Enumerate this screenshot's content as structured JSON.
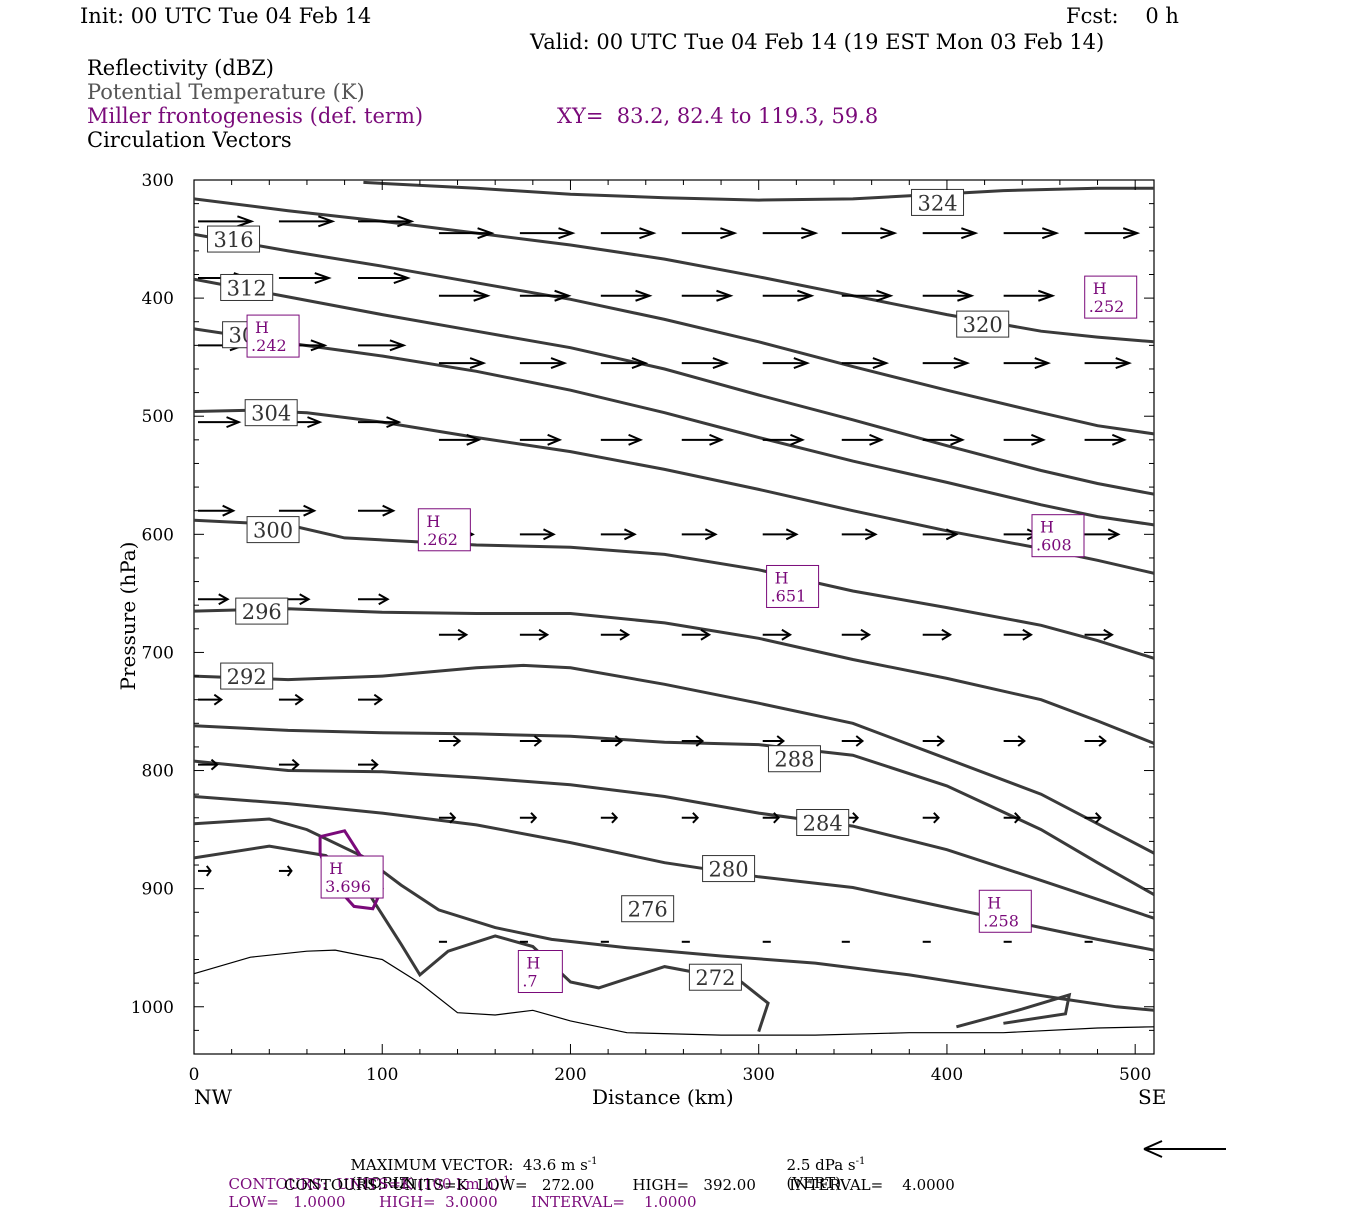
{
  "header": {
    "init": "Init: 00 UTC Tue 04 Feb 14",
    "fcst": "Fcst:    0 h",
    "valid": "Valid: 00 UTC Tue 04 Feb 14 (19 EST Mon 03 Feb 14)"
  },
  "legend": {
    "line1": "Reflectivity (dBZ)",
    "line2": "Potential Temperature (K)",
    "line3": "Miller frontogenesis (def. term)",
    "xy": "XY=  83.2, 82.4 to 119.3, 59.8",
    "line4": "Circulation Vectors"
  },
  "footer": {
    "max_vector": "MAXIMUM VECTOR:  43.6 m s",
    "max_vector_horiz": "(HORIZ)",
    "max_vector_vert": "2.5 dPa s",
    "max_vector_vert_unit": "(VERT)",
    "sup_minus1": "-1",
    "contours1_a": "CONTOURS:  UNITS=K (100 km h)",
    "contours1_b": "LOW=   1.0000       HIGH=  3.0000       INTERVAL=    1.0000",
    "contours2": "CONTOURS:  UNITS=K  LOW=   272.00        HIGH=   392.00       INTERVAL=    4.0000"
  },
  "colors": {
    "theta": "#3a3a3a",
    "front": "#7a0a7a",
    "vector": "#000000",
    "terrain": "#000000"
  },
  "chart_data": {
    "type": "line",
    "ylabel": "Pressure (hPa)",
    "xlabel": "Distance (km)",
    "x_left_label": "NW",
    "x_right_label": "SE",
    "xlim": [
      0,
      510
    ],
    "ylim": [
      300,
      1040
    ],
    "y_scale": "linear-inverted",
    "x_ticks": [
      0,
      100,
      200,
      300,
      400,
      500
    ],
    "y_ticks": [
      300,
      400,
      500,
      600,
      700,
      800,
      900,
      1000
    ],
    "theta_contours": [
      {
        "value": 324,
        "label": "324",
        "label_at": [
          395,
          319
        ],
        "points": [
          [
            90,
            302
          ],
          [
            150,
            307
          ],
          [
            200,
            312
          ],
          [
            250,
            315
          ],
          [
            300,
            317
          ],
          [
            350,
            316
          ],
          [
            395,
            312
          ],
          [
            430,
            309
          ],
          [
            480,
            307
          ],
          [
            510,
            307
          ]
        ]
      },
      {
        "value": 320,
        "label": "320",
        "label_at": [
          419,
          422
        ],
        "points": [
          [
            0,
            316
          ],
          [
            50,
            326
          ],
          [
            100,
            335
          ],
          [
            150,
            345
          ],
          [
            200,
            355
          ],
          [
            250,
            367
          ],
          [
            300,
            382
          ],
          [
            350,
            398
          ],
          [
            400,
            414
          ],
          [
            450,
            428
          ],
          [
            480,
            433
          ],
          [
            510,
            437
          ]
        ]
      },
      {
        "value": 316,
        "label": "316",
        "label_at": [
          21,
          350
        ],
        "points": [
          [
            0,
            346
          ],
          [
            50,
            360
          ],
          [
            100,
            373
          ],
          [
            150,
            387
          ],
          [
            200,
            401
          ],
          [
            250,
            418
          ],
          [
            300,
            437
          ],
          [
            350,
            458
          ],
          [
            400,
            478
          ],
          [
            450,
            497
          ],
          [
            480,
            508
          ],
          [
            510,
            515
          ]
        ]
      },
      {
        "value": 312,
        "label": "312",
        "label_at": [
          28,
          391
        ],
        "points": [
          [
            0,
            384
          ],
          [
            50,
            399
          ],
          [
            100,
            414
          ],
          [
            150,
            428
          ],
          [
            200,
            442
          ],
          [
            250,
            460
          ],
          [
            300,
            482
          ],
          [
            350,
            503
          ],
          [
            400,
            525
          ],
          [
            450,
            546
          ],
          [
            480,
            557
          ],
          [
            510,
            566
          ]
        ]
      },
      {
        "value": 308,
        "label": "308",
        "label_at": [
          29,
          431
        ],
        "points": [
          [
            0,
            426
          ],
          [
            50,
            438
          ],
          [
            100,
            449
          ],
          [
            150,
            462
          ],
          [
            200,
            478
          ],
          [
            250,
            497
          ],
          [
            300,
            518
          ],
          [
            350,
            538
          ],
          [
            400,
            556
          ],
          [
            450,
            575
          ],
          [
            480,
            585
          ],
          [
            510,
            592
          ]
        ]
      },
      {
        "value": 304,
        "label": "304",
        "label_at": [
          41,
          497
        ],
        "points": [
          [
            0,
            496
          ],
          [
            30,
            495
          ],
          [
            60,
            497
          ],
          [
            100,
            505
          ],
          [
            150,
            518
          ],
          [
            200,
            530
          ],
          [
            250,
            545
          ],
          [
            300,
            562
          ],
          [
            350,
            580
          ],
          [
            400,
            597
          ],
          [
            450,
            612
          ],
          [
            480,
            622
          ],
          [
            510,
            633
          ]
        ]
      },
      {
        "value": 300,
        "label": "300",
        "label_at": [
          42,
          596
        ],
        "points": [
          [
            0,
            588
          ],
          [
            50,
            592
          ],
          [
            80,
            603
          ],
          [
            150,
            609
          ],
          [
            200,
            611
          ],
          [
            250,
            617
          ],
          [
            300,
            630
          ],
          [
            350,
            648
          ],
          [
            400,
            662
          ],
          [
            450,
            677
          ],
          [
            480,
            690
          ],
          [
            510,
            705
          ]
        ]
      },
      {
        "value": 296,
        "label": "296",
        "label_at": [
          36,
          665
        ],
        "points": [
          [
            0,
            665
          ],
          [
            50,
            663
          ],
          [
            100,
            666
          ],
          [
            150,
            667
          ],
          [
            200,
            667
          ],
          [
            250,
            675
          ],
          [
            300,
            688
          ],
          [
            350,
            706
          ],
          [
            400,
            722
          ],
          [
            450,
            740
          ],
          [
            480,
            758
          ],
          [
            510,
            777
          ]
        ]
      },
      {
        "value": 292,
        "label": "292",
        "label_at": [
          28,
          720
        ],
        "points": [
          [
            0,
            720
          ],
          [
            50,
            723
          ],
          [
            100,
            720
          ],
          [
            150,
            713
          ],
          [
            175,
            711
          ],
          [
            200,
            713
          ],
          [
            250,
            727
          ],
          [
            300,
            743
          ],
          [
            350,
            760
          ],
          [
            400,
            790
          ],
          [
            450,
            820
          ],
          [
            480,
            845
          ],
          [
            510,
            870
          ]
        ]
      },
      {
        "value": 288,
        "label": "288",
        "label_at": [
          319,
          790
        ],
        "points": [
          [
            0,
            762
          ],
          [
            50,
            766
          ],
          [
            100,
            768
          ],
          [
            150,
            769
          ],
          [
            200,
            771
          ],
          [
            250,
            776
          ],
          [
            300,
            778
          ],
          [
            350,
            787
          ],
          [
            400,
            813
          ],
          [
            450,
            850
          ],
          [
            480,
            878
          ],
          [
            510,
            905
          ]
        ]
      },
      {
        "value": 284,
        "label": "284",
        "label_at": [
          334,
          844
        ],
        "points": [
          [
            0,
            792
          ],
          [
            50,
            800
          ],
          [
            100,
            801
          ],
          [
            150,
            806
          ],
          [
            200,
            812
          ],
          [
            250,
            822
          ],
          [
            300,
            836
          ],
          [
            350,
            847
          ],
          [
            400,
            867
          ],
          [
            450,
            893
          ],
          [
            480,
            909
          ],
          [
            510,
            925
          ]
        ]
      },
      {
        "value": 280,
        "label": "280",
        "label_at": [
          284,
          883
        ],
        "points": [
          [
            0,
            822
          ],
          [
            50,
            828
          ],
          [
            100,
            836
          ],
          [
            150,
            846
          ],
          [
            200,
            861
          ],
          [
            250,
            878
          ],
          [
            300,
            890
          ],
          [
            350,
            899
          ],
          [
            400,
            916
          ],
          [
            450,
            933
          ],
          [
            480,
            943
          ],
          [
            510,
            952
          ]
        ]
      },
      {
        "value": 276,
        "label": "276",
        "label_at": [
          241,
          917
        ],
        "points": [
          [
            0,
            845
          ],
          [
            40,
            841
          ],
          [
            60,
            850
          ],
          [
            90,
            873
          ],
          [
            110,
            897
          ],
          [
            130,
            918
          ],
          [
            160,
            933
          ],
          [
            190,
            943
          ],
          [
            230,
            950
          ],
          [
            280,
            957
          ],
          [
            330,
            963
          ],
          [
            380,
            973
          ],
          [
            420,
            983
          ],
          [
            460,
            993
          ],
          [
            490,
            1000
          ],
          [
            510,
            1003
          ]
        ]
      },
      {
        "value": 272,
        "label": "272",
        "label_at": [
          277,
          975
        ],
        "points": [
          [
            0,
            874
          ],
          [
            40,
            864
          ],
          [
            70,
            872
          ],
          [
            90,
            897
          ],
          [
            110,
            947
          ],
          [
            120,
            973
          ],
          [
            135,
            953
          ],
          [
            160,
            940
          ],
          [
            180,
            949
          ],
          [
            200,
            979
          ],
          [
            215,
            984
          ],
          [
            250,
            966
          ],
          [
            290,
            978
          ],
          [
            305,
            997
          ],
          [
            300,
            1021
          ]
        ]
      },
      {
        "value": 272,
        "label": "",
        "label_at": null,
        "points": [
          [
            405,
            1017
          ],
          [
            440,
            1002
          ],
          [
            465,
            990
          ],
          [
            463,
            1006
          ],
          [
            430,
            1014
          ]
        ]
      }
    ],
    "frontogenesis_highs": [
      {
        "label": "H",
        "value": ".242",
        "at": [
          42,
          433
        ]
      },
      {
        "label": "H",
        "value": ".252",
        "at": [
          487,
          400
        ]
      },
      {
        "label": "H",
        "value": ".262",
        "at": [
          133,
          597
        ]
      },
      {
        "label": "H",
        "value": ".608",
        "at": [
          459,
          602
        ]
      },
      {
        "label": "H",
        "value": ".651",
        "at": [
          318,
          645
        ]
      },
      {
        "label": "H",
        "value": "3.696",
        "at": [
          84,
          891
        ]
      },
      {
        "label": "H",
        "value": ".258",
        "at": [
          431,
          920
        ]
      },
      {
        "label": "H",
        "value": ".7",
        "at": [
          184,
          971
        ]
      }
    ],
    "frontogenesis_contours": [
      {
        "value": 1,
        "points": [
          [
            67,
            856
          ],
          [
            80,
            851
          ],
          [
            92,
            881
          ],
          [
            100,
            900
          ],
          [
            95,
            917
          ],
          [
            85,
            915
          ],
          [
            72,
            892
          ],
          [
            67,
            870
          ],
          [
            67,
            856
          ]
        ]
      },
      {
        "value": 2,
        "points": [
          [
            78,
            873
          ],
          [
            88,
            878
          ],
          [
            95,
            902
          ],
          [
            88,
            906
          ],
          [
            82,
            897
          ],
          [
            78,
            873
          ]
        ]
      }
    ],
    "vectors": {
      "u_scale_km": 43,
      "rows": [
        {
          "p": 335,
          "x": [
            0,
            43,
            85
          ]
        },
        {
          "p": 345,
          "x": [
            128,
            171,
            214,
            257,
            300,
            342,
            385,
            428,
            471
          ]
        },
        {
          "p": 383,
          "x": [
            0,
            43,
            85
          ]
        },
        {
          "p": 398,
          "x": [
            128,
            171,
            214,
            257,
            300,
            342,
            385,
            428,
            471
          ]
        },
        {
          "p": 440,
          "x": [
            0,
            43,
            85
          ]
        },
        {
          "p": 455,
          "x": [
            128,
            171,
            214,
            257,
            300,
            342,
            385,
            428,
            471
          ]
        },
        {
          "p": 505,
          "x": [
            0,
            43,
            85
          ]
        },
        {
          "p": 520,
          "x": [
            128,
            171,
            214,
            257,
            300,
            342,
            385,
            428,
            471
          ]
        },
        {
          "p": 580,
          "x": [
            0,
            43,
            85
          ]
        },
        {
          "p": 600,
          "x": [
            128,
            171,
            214,
            257,
            300,
            342,
            385,
            428,
            471
          ]
        },
        {
          "p": 655,
          "x": [
            0,
            43,
            85
          ]
        },
        {
          "p": 685,
          "x": [
            128,
            171,
            214,
            257,
            300,
            342,
            385,
            428,
            471
          ]
        },
        {
          "p": 740,
          "x": [
            0,
            43,
            85
          ]
        },
        {
          "p": 775,
          "x": [
            128,
            171,
            214,
            257,
            300,
            342,
            385,
            428,
            471
          ]
        },
        {
          "p": 795,
          "x": [
            0,
            43,
            85
          ]
        },
        {
          "p": 840,
          "x": [
            128,
            171,
            214,
            257,
            300,
            342,
            385,
            428,
            471
          ]
        },
        {
          "p": 885,
          "x": [
            0,
            43,
            85
          ]
        },
        {
          "p": 945,
          "x": [
            128,
            171,
            214,
            257,
            300,
            342,
            385,
            428,
            471
          ]
        }
      ]
    },
    "terrain": [
      [
        0,
        972
      ],
      [
        30,
        958
      ],
      [
        60,
        953
      ],
      [
        75,
        952
      ],
      [
        100,
        960
      ],
      [
        120,
        980
      ],
      [
        140,
        1005
      ],
      [
        160,
        1007
      ],
      [
        180,
        1003
      ],
      [
        200,
        1012
      ],
      [
        230,
        1022
      ],
      [
        280,
        1024
      ],
      [
        330,
        1024
      ],
      [
        380,
        1022
      ],
      [
        430,
        1022
      ],
      [
        480,
        1018
      ],
      [
        510,
        1017
      ]
    ]
  }
}
